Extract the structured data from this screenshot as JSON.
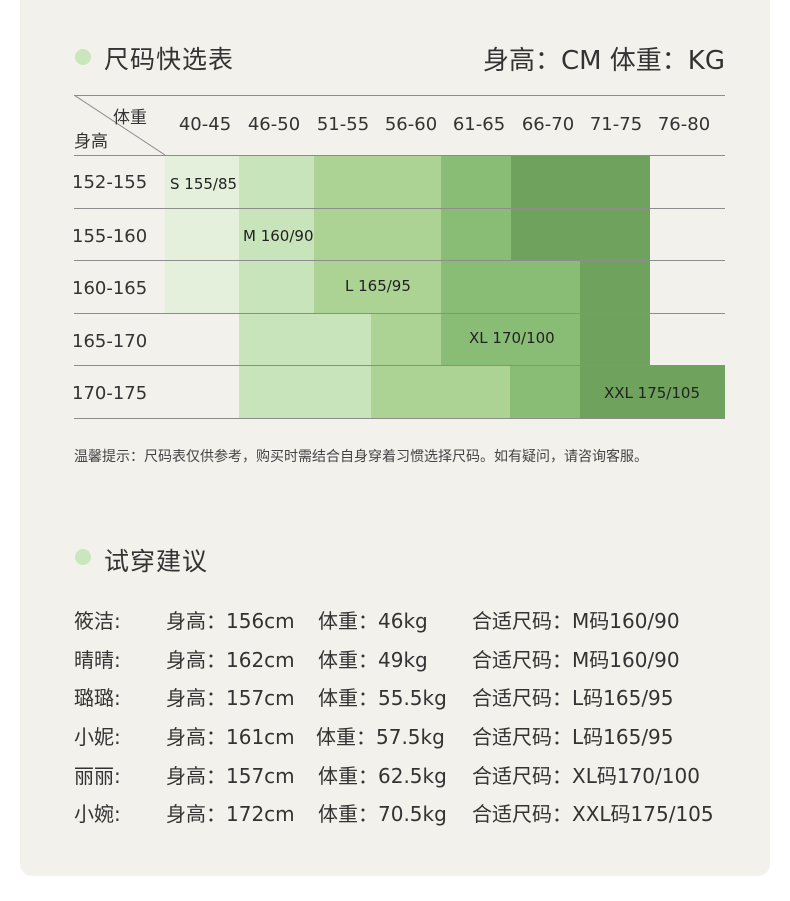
{
  "size_chart": {
    "title": "尺码快选表",
    "units": "身高：CM  体重：KG",
    "corner_weight": "体重",
    "corner_height": "身高",
    "weight_ranges": [
      "40-45",
      "46-50",
      "51-55",
      "56-60",
      "61-65",
      "66-70",
      "71-75",
      "76-80"
    ],
    "height_ranges": [
      "152-155",
      "155-160",
      "160-165",
      "165-170",
      "170-175"
    ],
    "size_labels": [
      "S 155/85",
      "M 160/90",
      "L 165/95",
      "XL 170/100",
      "XXL 175/105"
    ],
    "colors": {
      "S": "#e4f0dc",
      "M": "#c8e4ba",
      "L": "#acd394",
      "XL": "#89bd76",
      "XXL": "#6fa35d"
    },
    "tip": "温馨提示：尺码表仅供参考，购买时需结合自身穿着习惯选择尺码。如有疑问，请咨询客服。"
  },
  "try_on": {
    "title": "试穿建议",
    "rows": [
      {
        "name": "筱洁:",
        "height": "身高：156cm",
        "weight": "体重：46kg",
        "size": "合适尺码：M码160/90"
      },
      {
        "name": "晴晴:",
        "height": "身高：162cm",
        "weight": "体重：49kg",
        "size": "合适尺码：M码160/90"
      },
      {
        "name": "璐璐:",
        "height": "身高：157cm",
        "weight": "体重：55.5kg",
        "size": "合适尺码：L码165/95"
      },
      {
        "name": "小妮:",
        "height": "身高：161cm",
        "weight": "体重：57.5kg",
        "size": "合适尺码：L码165/95"
      },
      {
        "name": "丽丽:",
        "height": "身高：157cm",
        "weight": "体重：62.5kg",
        "size": "合适尺码：XL码170/100"
      },
      {
        "name": "小婉:",
        "height": "身高：172cm",
        "weight": "体重：70.5kg",
        "size": "合适尺码：XXL码175/105"
      }
    ]
  }
}
